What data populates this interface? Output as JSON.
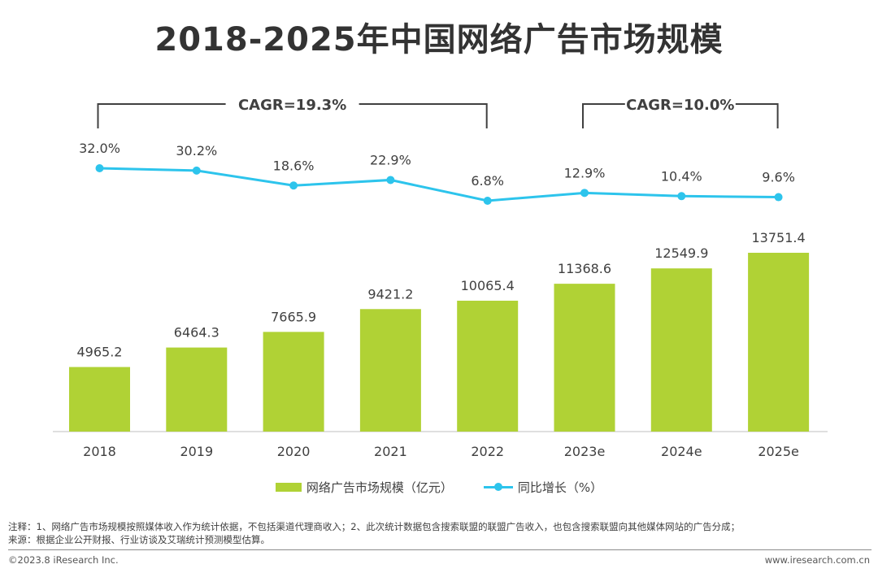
{
  "title": "2018-2025年中国网络广告市场规模",
  "colors": {
    "bar": "#b0d235",
    "line": "#2dc4ec",
    "bracket": "#404040",
    "text": "#404040"
  },
  "cagr": [
    {
      "label": "CAGR=19.3%",
      "from": "2018",
      "to": "2022"
    },
    {
      "label": "CAGR=10.0%",
      "from": "2023e",
      "to": "2025e"
    }
  ],
  "chart_data": {
    "type": "bar",
    "categories": [
      "2018",
      "2019",
      "2020",
      "2021",
      "2022",
      "2023e",
      "2024e",
      "2025e"
    ],
    "series": [
      {
        "name": "网络广告市场规模（亿元）",
        "type": "bar",
        "values": [
          4965.2,
          6464.3,
          7665.9,
          9421.2,
          10065.4,
          11368.6,
          12549.9,
          13751.4
        ],
        "labels": [
          "4965.2",
          "6464.3",
          "7665.9",
          "9421.2",
          "10065.4",
          "11368.6",
          "12549.9",
          "13751.4"
        ]
      },
      {
        "name": "同比增长（%）",
        "type": "line",
        "values": [
          32.0,
          30.2,
          18.6,
          22.9,
          6.8,
          12.9,
          10.4,
          9.6
        ],
        "labels": [
          "32.0%",
          "30.2%",
          "18.6%",
          "22.9%",
          "6.8%",
          "12.9%",
          "10.4%",
          "9.6%"
        ]
      }
    ],
    "ylim": [
      0,
      15000
    ],
    "growth_range": [
      0,
      32
    ],
    "legend_position": "bottom",
    "grid": false
  },
  "legend": {
    "bar_label": "网络广告市场规模（亿元）",
    "line_label": "同比增长（%）"
  },
  "notes": {
    "line1": "注释：1、网络广告市场规模按照媒体收入作为统计依据，不包括渠道代理商收入；2、此次统计数据包含搜索联盟的联盟广告收入，也包含搜索联盟向其他媒体网站的广告分成；",
    "line2": "来源：根据企业公开财报、行业访谈及艾瑞统计预测模型估算。"
  },
  "footer": {
    "left": "©2023.8 iResearch Inc.",
    "right": "www.iresearch.com.cn"
  }
}
